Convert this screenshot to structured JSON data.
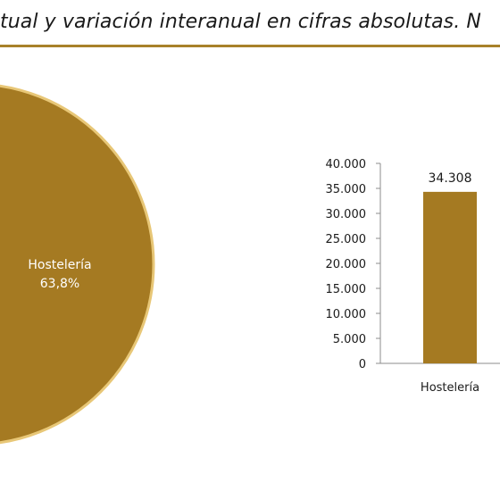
{
  "header": {
    "title_fragment": "tual y variación interanual en cifras absolutas. N"
  },
  "colors": {
    "accent": "#a8812a",
    "pie_fill": "#a57a22",
    "pie_edge": "#e8c777",
    "bar_fill": "#a57a22"
  },
  "chart_data": [
    {
      "type": "pie",
      "slices": [
        {
          "label": "Hostelería",
          "percent_label": "63,8%",
          "value": 63.8
        }
      ]
    },
    {
      "type": "bar",
      "categories": [
        "Hostelería"
      ],
      "values": [
        34308
      ],
      "value_labels": [
        "34.308"
      ],
      "yticks": [
        0,
        5000,
        10000,
        15000,
        20000,
        25000,
        30000,
        35000,
        40000
      ],
      "ytick_labels": [
        "0",
        "5.000",
        "10.000",
        "15.000",
        "20.000",
        "25.000",
        "30.000",
        "35.000",
        "40.000"
      ],
      "ylim": [
        0,
        40000
      ],
      "grid": false
    }
  ]
}
